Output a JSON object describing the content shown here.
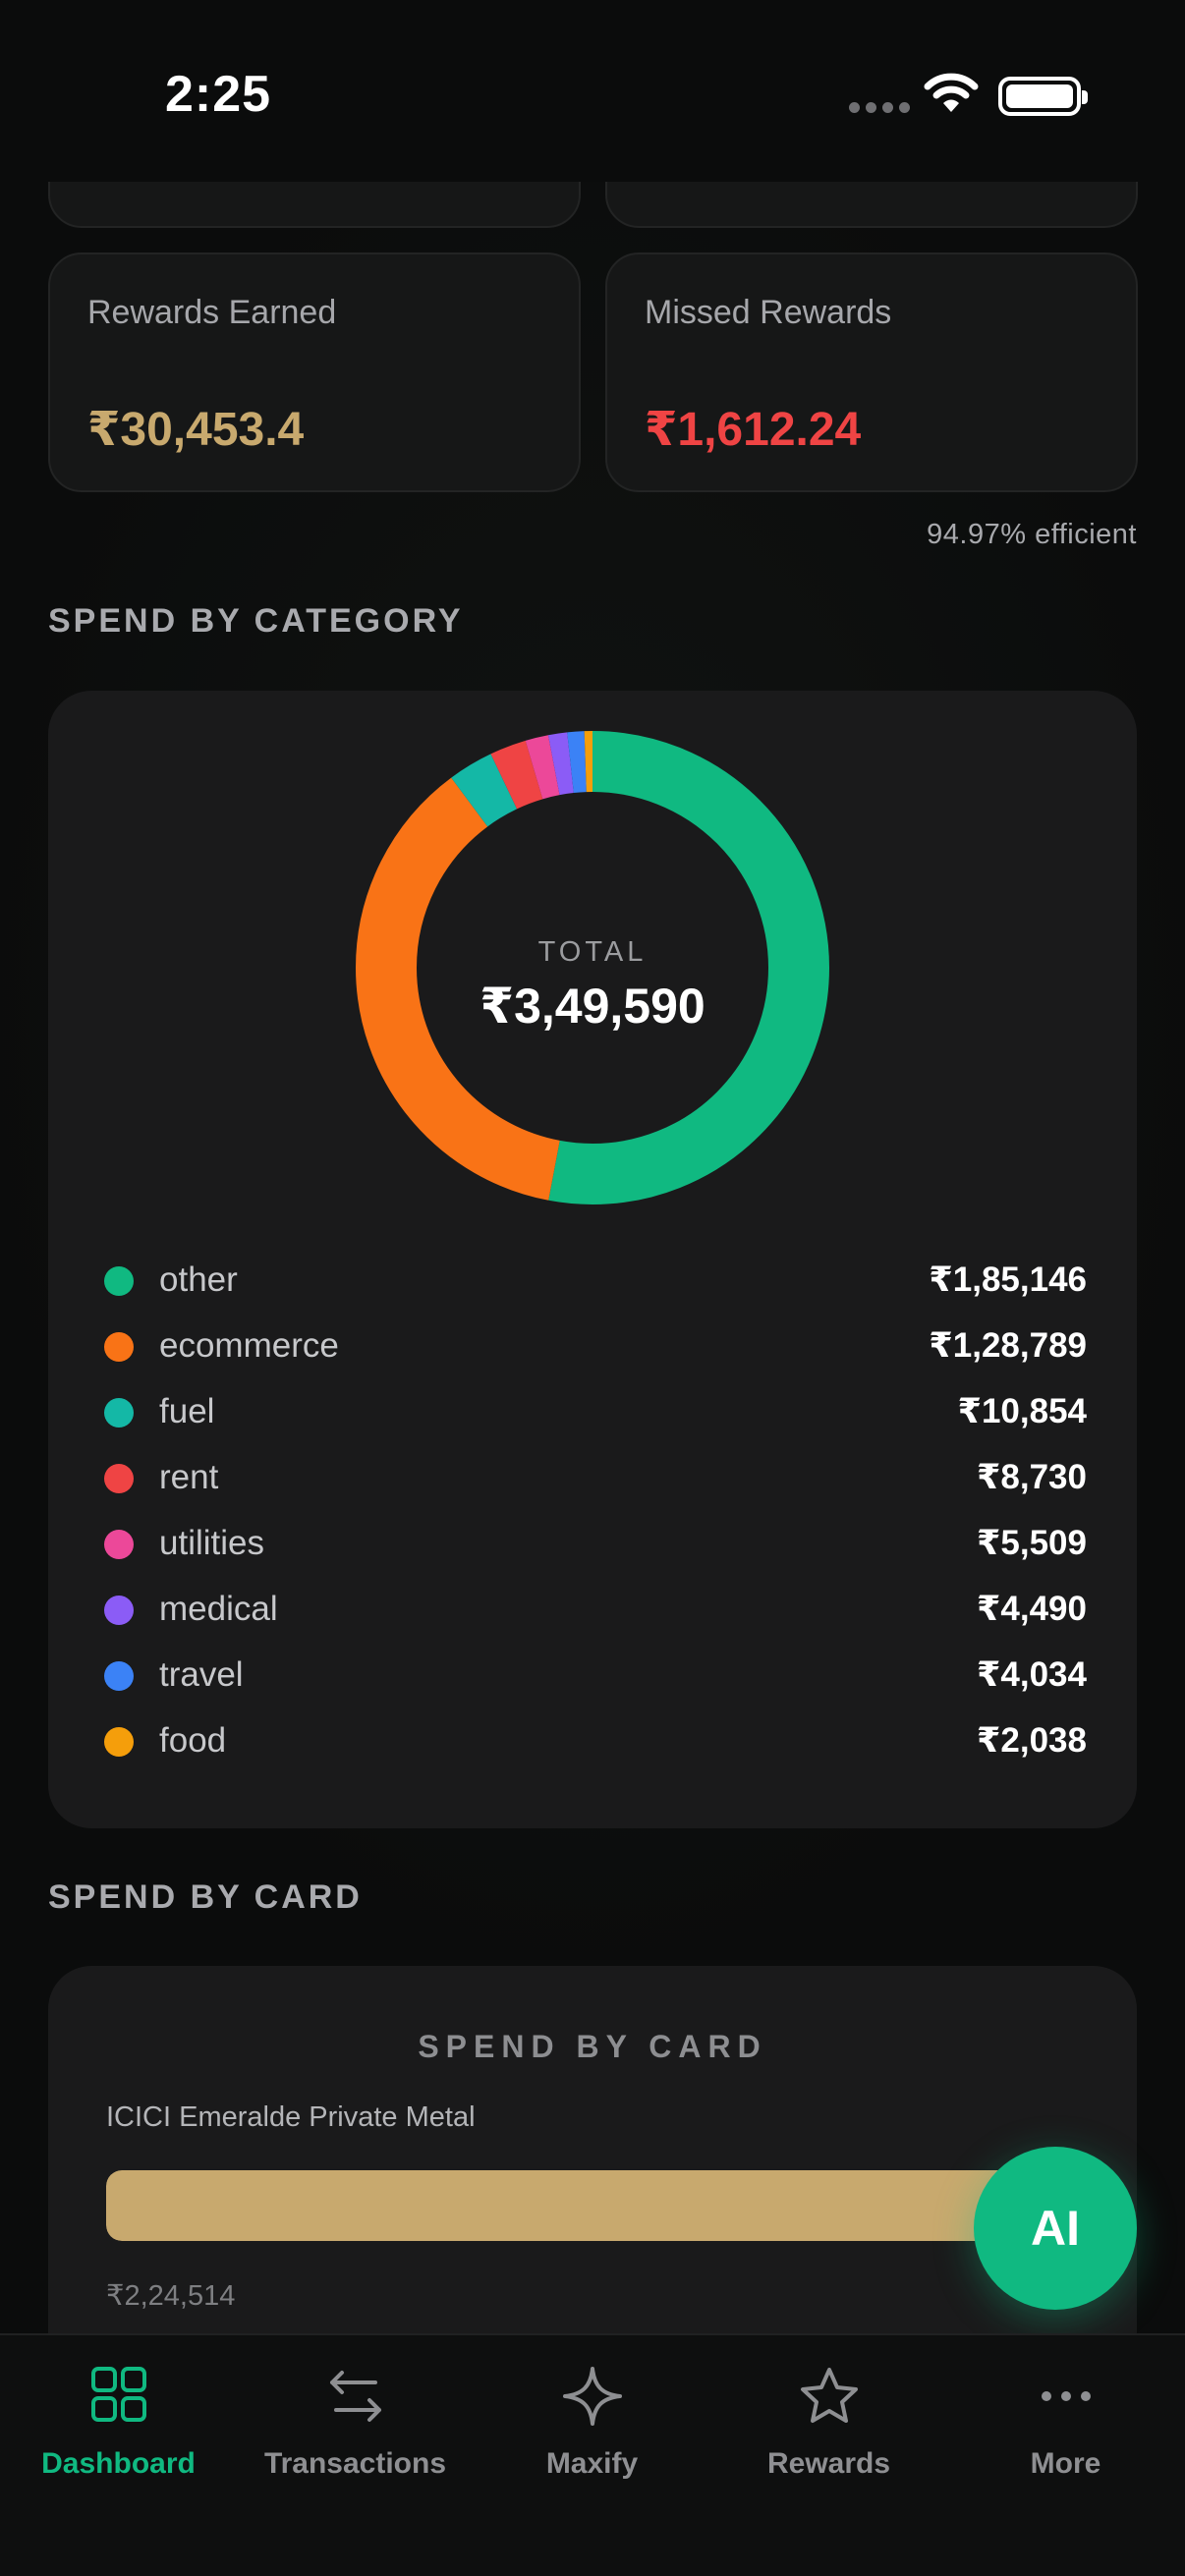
{
  "status_bar": {
    "time": "2:25"
  },
  "stats": {
    "rewards_earned": {
      "label": "Rewards Earned",
      "value": "₹30,453.4",
      "color": "#c8a96e"
    },
    "missed_rewards": {
      "label": "Missed Rewards",
      "value": "₹1,612.24",
      "color": "#ef4444"
    },
    "efficiency": "94.97% efficient"
  },
  "category_section": {
    "title": "SPEND BY CATEGORY",
    "total_label": "TOTAL",
    "total_value": "₹3,49,590",
    "items": [
      {
        "name": "other",
        "amount": "₹1,85,146",
        "value": 185146,
        "color": "#10b981"
      },
      {
        "name": "ecommerce",
        "amount": "₹1,28,789",
        "value": 128789,
        "color": "#f97316"
      },
      {
        "name": "fuel",
        "amount": "₹10,854",
        "value": 10854,
        "color": "#14b8a6"
      },
      {
        "name": "rent",
        "amount": "₹8,730",
        "value": 8730,
        "color": "#ef4444"
      },
      {
        "name": "utilities",
        "amount": "₹5,509",
        "value": 5509,
        "color": "#ec4899"
      },
      {
        "name": "medical",
        "amount": "₹4,490",
        "value": 4490,
        "color": "#8b5cf6"
      },
      {
        "name": "travel",
        "amount": "₹4,034",
        "value": 4034,
        "color": "#3b82f6"
      },
      {
        "name": "food",
        "amount": "₹2,038",
        "value": 2038,
        "color": "#f59e0b"
      }
    ]
  },
  "card_section": {
    "title": "SPEND BY CARD",
    "chart_title": "SPEND BY CARD",
    "cards": [
      {
        "name": "ICICI Emeralde Private Metal",
        "amount": "₹2,24,514",
        "fill_fraction": 1.0,
        "color": "#c8a96e"
      }
    ]
  },
  "ai_button": {
    "label": "AI"
  },
  "nav": {
    "active": "dashboard",
    "items": [
      {
        "id": "dashboard",
        "label": "Dashboard",
        "icon": "grid-icon"
      },
      {
        "id": "transactions",
        "label": "Transactions",
        "icon": "arrows-swap-icon"
      },
      {
        "id": "maxify",
        "label": "Maxify",
        "icon": "sparkle-icon"
      },
      {
        "id": "rewards",
        "label": "Rewards",
        "icon": "star-icon"
      },
      {
        "id": "more",
        "label": "More",
        "icon": "more-dots-icon"
      }
    ]
  },
  "chart_data": {
    "type": "pie",
    "categories": [
      "other",
      "ecommerce",
      "fuel",
      "rent",
      "utilities",
      "medical",
      "travel",
      "food"
    ],
    "values": [
      185146,
      128789,
      10854,
      8730,
      5509,
      4490,
      4034,
      2038
    ],
    "title": "SPEND BY CATEGORY"
  }
}
